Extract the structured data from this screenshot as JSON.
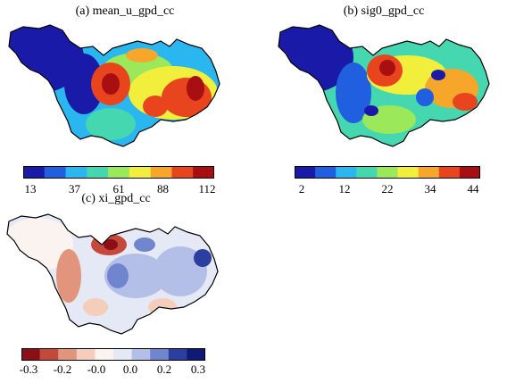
{
  "panels": [
    {
      "title": "(a) mean_u_gpd_cc",
      "colormap": "rainbow",
      "ticks": [
        "13",
        "37",
        "61",
        "88",
        "112"
      ],
      "colors": [
        "#1a1aa8",
        "#1f5fe0",
        "#2ab7f0",
        "#45d8b0",
        "#9be85a",
        "#f2ef3c",
        "#f7a62c",
        "#e8451f",
        "#a80f12"
      ]
    },
    {
      "title": "(b) sig0_gpd_cc",
      "colormap": "rainbow",
      "ticks": [
        "2",
        "12",
        "22",
        "34",
        "44"
      ],
      "colors": [
        "#1a1aa8",
        "#1f5fe0",
        "#2ab7f0",
        "#45d8b0",
        "#9be85a",
        "#f2ef3c",
        "#f7a62c",
        "#e8451f",
        "#a80f12"
      ]
    },
    {
      "title": "(c) xi_gpd_cc",
      "colormap": "diverging red-white-blue",
      "ticks": [
        "-0.3",
        "-0.2",
        "-0.0",
        "0.0",
        "0.2",
        "0.3"
      ],
      "colors": [
        "#8b0f16",
        "#c4493a",
        "#e3947c",
        "#f4cdbb",
        "#fbf3ef",
        "#e5e9f6",
        "#b3bfe6",
        "#6f86cf",
        "#2a3fa0",
        "#0f1a78"
      ]
    }
  ]
}
